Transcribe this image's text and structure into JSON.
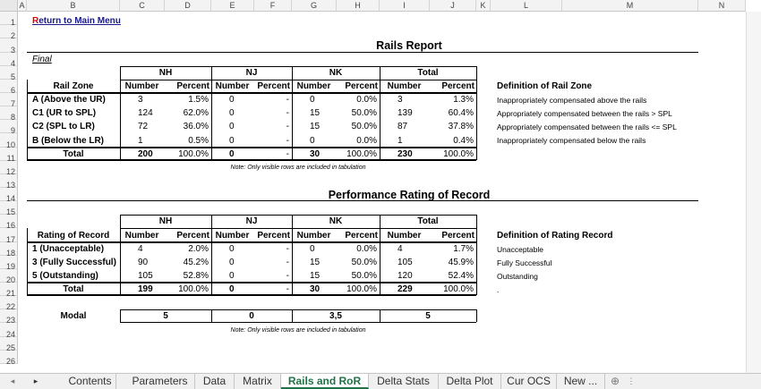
{
  "columns": [
    "A",
    "B",
    "C",
    "D",
    "E",
    "F",
    "G",
    "H",
    "I",
    "J",
    "K",
    "L",
    "M",
    "N"
  ],
  "rows": [
    "1",
    "2",
    "3",
    "4",
    "5",
    "6",
    "7",
    "8",
    "9",
    "10",
    "11",
    "12",
    "13",
    "14",
    "15",
    "16",
    "17",
    "18",
    "19",
    "20",
    "21",
    "22",
    "23",
    "24",
    "25",
    "26"
  ],
  "return_link": {
    "first": "R",
    "rest": "eturn to Main Menu"
  },
  "rails_report": {
    "title": "Rails Report",
    "final_label": "Final",
    "groups": [
      "NH",
      "NJ",
      "NK",
      "Total"
    ],
    "row_header": "Rail Zone",
    "sub_headers": [
      "Number",
      "Percent",
      "Number",
      "Percent",
      "Number",
      "Percent",
      "Number",
      "Percent"
    ],
    "rows": [
      {
        "label": "A (Above the UR)",
        "v": [
          "3",
          "1.5%",
          "0",
          "-",
          "0",
          "0.0%",
          "3",
          "1.3%"
        ]
      },
      {
        "label": "C1 (UR to SPL)",
        "v": [
          "124",
          "62.0%",
          "0",
          "-",
          "15",
          "50.0%",
          "139",
          "60.4%"
        ]
      },
      {
        "label": "C2 (SPL to LR)",
        "v": [
          "72",
          "36.0%",
          "0",
          "-",
          "15",
          "50.0%",
          "87",
          "37.8%"
        ]
      },
      {
        "label": "B (Below the LR)",
        "v": [
          "1",
          "0.5%",
          "0",
          "-",
          "0",
          "0.0%",
          "1",
          "0.4%"
        ]
      }
    ],
    "total": {
      "label": "Total",
      "v": [
        "200",
        "100.0%",
        "0",
        "-",
        "30",
        "100.0%",
        "230",
        "100.0%"
      ]
    },
    "note": "Note: Only visible rows are included in tabulation",
    "definition_title": "Definition of Rail Zone",
    "definitions": [
      "Inappropriately compensated above the rails",
      "Appropriately compensated between the rails > SPL",
      "Appropriately compensated between the rails <= SPL",
      "Inappropriately compensated below the rails"
    ]
  },
  "performance": {
    "title": "Performance Rating of Record",
    "groups": [
      "NH",
      "NJ",
      "NK",
      "Total"
    ],
    "row_header": "Rating of Record",
    "sub_headers": [
      "Number",
      "Percent",
      "Number",
      "Percent",
      "Number",
      "Percent",
      "Number",
      "Percent"
    ],
    "rows": [
      {
        "label": "1 (Unacceptable)",
        "v": [
          "4",
          "2.0%",
          "0",
          "-",
          "0",
          "0.0%",
          "4",
          "1.7%"
        ]
      },
      {
        "label": "3 (Fully Successful)",
        "v": [
          "90",
          "45.2%",
          "0",
          "-",
          "15",
          "50.0%",
          "105",
          "45.9%"
        ]
      },
      {
        "label": "5 (Outstanding)",
        "v": [
          "105",
          "52.8%",
          "0",
          "-",
          "15",
          "50.0%",
          "120",
          "52.4%"
        ]
      }
    ],
    "total": {
      "label": "Total",
      "v": [
        "199",
        "100.0%",
        "0",
        "-",
        "30",
        "100.0%",
        "229",
        "100.0%"
      ]
    },
    "modal": {
      "label": "Modal",
      "v": [
        "5",
        "0",
        "3,5",
        "5"
      ]
    },
    "note": "Note: Only visible rows are included in tabulation",
    "definition_title": "Definition of Rating Record",
    "definitions": [
      "Unacceptable",
      "Fully Successful",
      "Outstanding",
      "."
    ]
  },
  "tabs": [
    "Contents",
    "Parameters",
    "Data",
    "Matrix",
    "Rails and RoR",
    "Delta Stats",
    "Delta Plot",
    "Cur OCS",
    "New ..."
  ],
  "active_tab": "Rails and RoR",
  "tab_more": "..."
}
